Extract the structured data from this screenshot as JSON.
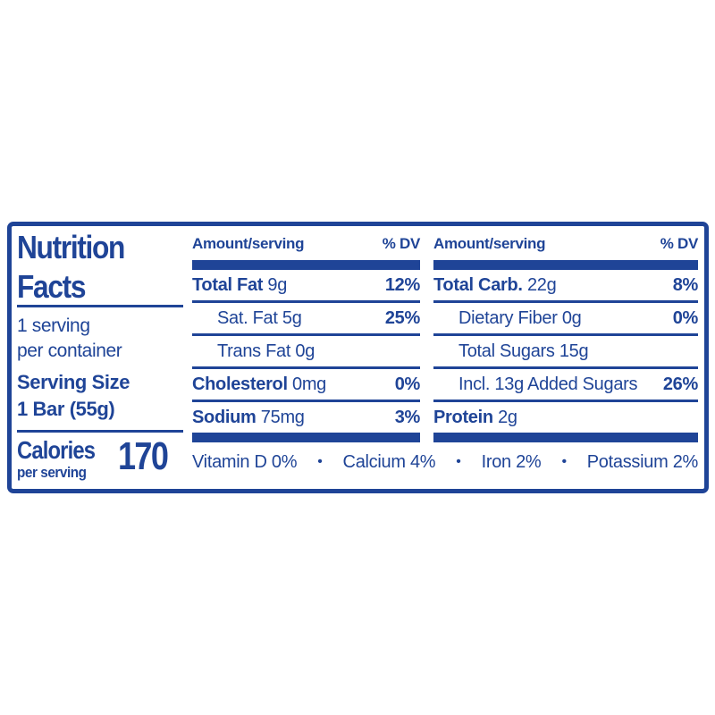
{
  "label": {
    "accent_color": "#1f4497",
    "title_line1": "Nutrition",
    "title_line2": "Facts",
    "servings_line1": "1 serving",
    "servings_line2": "per container",
    "serving_size": {
      "label": "Serving Size",
      "value": "1 Bar (55g)"
    },
    "calories": {
      "label": "Calories",
      "sublabel": "per serving",
      "value": "170"
    },
    "table": {
      "amount_header": "Amount/serving",
      "dv_header": "% DV",
      "mid_rows": [
        {
          "name": "Total Fat",
          "amount": "9g",
          "dv": "12%"
        },
        {
          "name": "Sat. Fat",
          "amount": "5g",
          "dv": "25%"
        },
        {
          "name": "Trans Fat",
          "amount": "0g",
          "dv": ""
        },
        {
          "name": "Cholesterol",
          "amount": "0mg",
          "dv": "0%"
        },
        {
          "name": "Sodium",
          "amount": "75mg",
          "dv": "3%"
        }
      ],
      "right_rows": [
        {
          "name": "Total Carb.",
          "amount": "22g",
          "dv": "8%"
        },
        {
          "name": "Dietary Fiber",
          "amount": "0g",
          "dv": "0%"
        },
        {
          "name": "Total Sugars",
          "amount": "15g",
          "dv": ""
        },
        {
          "name": "Incl. 13g Added Sugars",
          "amount": "",
          "dv": "26%"
        },
        {
          "name": "Protein",
          "amount": "2g",
          "dv": ""
        }
      ]
    },
    "micronutrients": {
      "separator": "•",
      "items": [
        "Vitamin D 0%",
        "Calcium 4%",
        "Iron 2%",
        "Potassium 2%"
      ]
    }
  }
}
